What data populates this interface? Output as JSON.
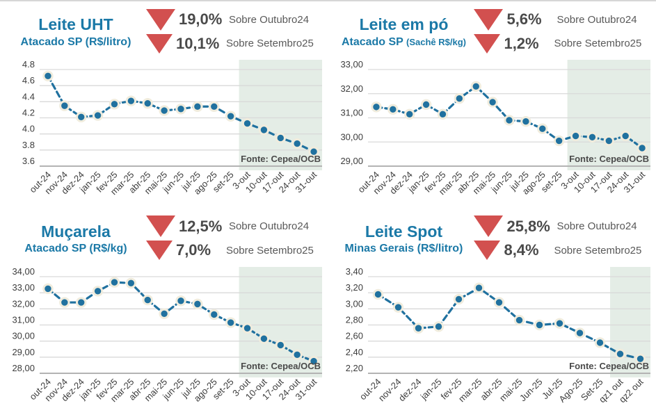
{
  "report_source": "Fonte: Cepea/OCB",
  "colors": {
    "title_blue": "#1b79a7",
    "line_blue": "#20719f",
    "marker_halo": "#f0ecdd",
    "arrow_red": "#d2504f",
    "highlight_green": "#e4ede6",
    "grid_gray": "#d9d9d9",
    "axis_gray": "#b3b3b3",
    "tick_text": "#3c3c3c",
    "stat_value_text": "#4a4a4a",
    "stat_label_text": "#595959"
  },
  "panels": [
    {
      "title": "Leite UHT",
      "subtitle_main": "Atacado SP",
      "subtitle_paren": "(R$/litro)",
      "stats": [
        {
          "icon": "down-triangle-icon",
          "value": "19,0%",
          "label": "Sobre Outubro24"
        },
        {
          "icon": "down-triangle-icon",
          "value": "10,1%",
          "label": "Sobre Setembro25"
        }
      ],
      "source": "Fonte: Cepea/OCB"
    },
    {
      "title": "Leite em pó",
      "subtitle_main": "Atacado SP",
      "subtitle_paren": "(Sachê R$/kg)",
      "stats": [
        {
          "icon": "down-triangle-icon",
          "value": "5,6%",
          "label": "Sobre Outubro24"
        },
        {
          "icon": "down-triangle-icon",
          "value": "1,2%",
          "label": "Sobre Setembro25"
        }
      ],
      "source": "Fonte: Cepea/OCB"
    },
    {
      "title": "Muçarela",
      "subtitle_main": "Atacado SP",
      "subtitle_paren": "(R$/kg)",
      "stats": [
        {
          "icon": "down-triangle-icon",
          "value": "12,5%",
          "label": "Sobre Outubro24"
        },
        {
          "icon": "down-triangle-icon",
          "value": "7,0%",
          "label": "Sobre Setembro25"
        }
      ],
      "source": "Fonte: Cepea/OCB"
    },
    {
      "title": "Leite Spot",
      "subtitle_main": "Minas Gerais",
      "subtitle_paren": "(R$/litro)",
      "stats": [
        {
          "icon": "down-triangle-icon",
          "value": "25,8%",
          "label": "Sobre Outubro24"
        },
        {
          "icon": "down-triangle-icon",
          "value": "8,4%",
          "label": "Sobre Setembro25"
        }
      ],
      "source": "Fonte: Cepea/OCB"
    }
  ],
  "chart_data": [
    {
      "type": "line",
      "title": "Leite UHT - Atacado SP (R$/litro)",
      "categories": [
        "out-24",
        "nov-24",
        "dez-24",
        "jan-25",
        "fev-25",
        "mar-25",
        "abr-25",
        "mai-25",
        "jun-25",
        "jul-25",
        "ago-25",
        "set-25",
        "3-out",
        "10-out",
        "17-out",
        "24-out",
        "31-out"
      ],
      "values": [
        4.72,
        4.35,
        4.21,
        4.23,
        4.37,
        4.41,
        4.38,
        4.29,
        4.31,
        4.34,
        4.34,
        4.22,
        4.13,
        4.05,
        3.95,
        3.88,
        3.78
      ],
      "ylim": [
        3.6,
        4.8
      ],
      "ytick_values": [
        4.8,
        4.6,
        4.4,
        4.2,
        4.0,
        3.8,
        3.6
      ],
      "ytick_labels": [
        "4.8",
        "4.6",
        "4.4",
        "4.2",
        "4.0",
        "3.8",
        "3.6"
      ],
      "grid": true,
      "legend": "none",
      "highlight_last_n": 5,
      "source": "Fonte: Cepea/OCB"
    },
    {
      "type": "line",
      "title": "Leite em pó - Atacado SP (Sachê R$/kg)",
      "categories": [
        "out-24",
        "nov-24",
        "dez-24",
        "jan-25",
        "fev-25",
        "mar-25",
        "abr-25",
        "mai-25",
        "jun-25",
        "jul-25",
        "ago-25",
        "set-25",
        "3-out",
        "10-out",
        "17-out",
        "24-out",
        "31-out"
      ],
      "values": [
        31.45,
        31.35,
        31.15,
        31.55,
        31.15,
        31.8,
        32.3,
        31.65,
        30.9,
        30.85,
        30.55,
        30.05,
        30.25,
        30.2,
        30.05,
        30.25,
        29.75
      ],
      "ylim": [
        29.0,
        33.0
      ],
      "ytick_values": [
        33.0,
        32.0,
        31.0,
        30.0,
        29.0
      ],
      "ytick_labels": [
        "33,00",
        "32,00",
        "31,00",
        "30,00",
        "29,00"
      ],
      "grid": true,
      "legend": "none",
      "highlight_last_n": 5,
      "source": "Fonte: Cepea/OCB"
    },
    {
      "type": "line",
      "title": "Muçarela - Atacado SP (R$/kg)",
      "categories": [
        "out-24",
        "nov-24",
        "dez-24",
        "jan-25",
        "fev-25",
        "mar-25",
        "abr-25",
        "mai-25",
        "jun-25",
        "jul-25",
        "ago-25",
        "set-25",
        "3-out",
        "10-out",
        "17-out",
        "24-out",
        "31-out"
      ],
      "values": [
        33.25,
        32.4,
        32.4,
        33.1,
        33.65,
        33.6,
        32.55,
        31.7,
        32.5,
        32.3,
        31.65,
        31.15,
        30.8,
        30.15,
        29.75,
        29.15,
        28.75
      ],
      "ylim": [
        28.0,
        34.0
      ],
      "ytick_values": [
        34.0,
        33.0,
        32.0,
        31.0,
        30.0,
        29.0,
        28.0
      ],
      "ytick_labels": [
        "34,00",
        "33,00",
        "32,00",
        "31,00",
        "30,00",
        "29,00",
        "28,00"
      ],
      "grid": true,
      "legend": "none",
      "highlight_last_n": 5,
      "source": "Fonte: Cepea/OCB"
    },
    {
      "type": "line",
      "title": "Leite Spot - Minas Gerais (R$/litro)",
      "categories": [
        "out-24",
        "nov-24",
        "dez-24",
        "jan-25",
        "fev-25",
        "mar-25",
        "abr-25",
        "mai-25",
        "Jun-25",
        "Jul-25",
        "Ago-25",
        "Set-25",
        "qz1 out",
        "qz2 out"
      ],
      "values": [
        3.18,
        3.02,
        2.76,
        2.78,
        3.12,
        3.26,
        3.08,
        2.86,
        2.8,
        2.82,
        2.7,
        2.58,
        2.44,
        2.38
      ],
      "ylim": [
        2.2,
        3.4
      ],
      "ytick_values": [
        3.4,
        3.2,
        3.0,
        2.8,
        2.6,
        2.4,
        2.2
      ],
      "ytick_labels": [
        "3,40",
        "3,20",
        "3,00",
        "2,80",
        "2,60",
        "2,40",
        "2,20"
      ],
      "grid": true,
      "legend": "none",
      "highlight_last_n": 2,
      "source": "Fonte: Cepea/OCB"
    }
  ]
}
